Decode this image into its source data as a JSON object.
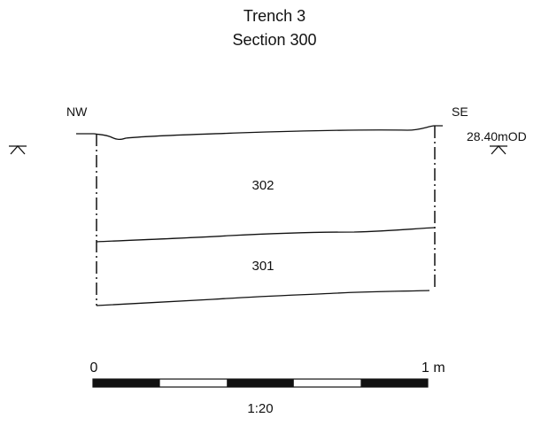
{
  "title": {
    "line1": "Trench 3",
    "line2": "Section 300"
  },
  "orientation": {
    "left": "NW",
    "right": "SE"
  },
  "datum": {
    "label": "28.40mOD",
    "marker_icon": "datum-level-icon"
  },
  "layers": [
    {
      "id": "302",
      "label": "302"
    },
    {
      "id": "301",
      "label": "301"
    }
  ],
  "scale_bar": {
    "start_label": "0",
    "end_label": "1 m",
    "ratio": "1:20",
    "segments": 5
  },
  "colors": {
    "ink": "#111111",
    "background": "#ffffff"
  }
}
